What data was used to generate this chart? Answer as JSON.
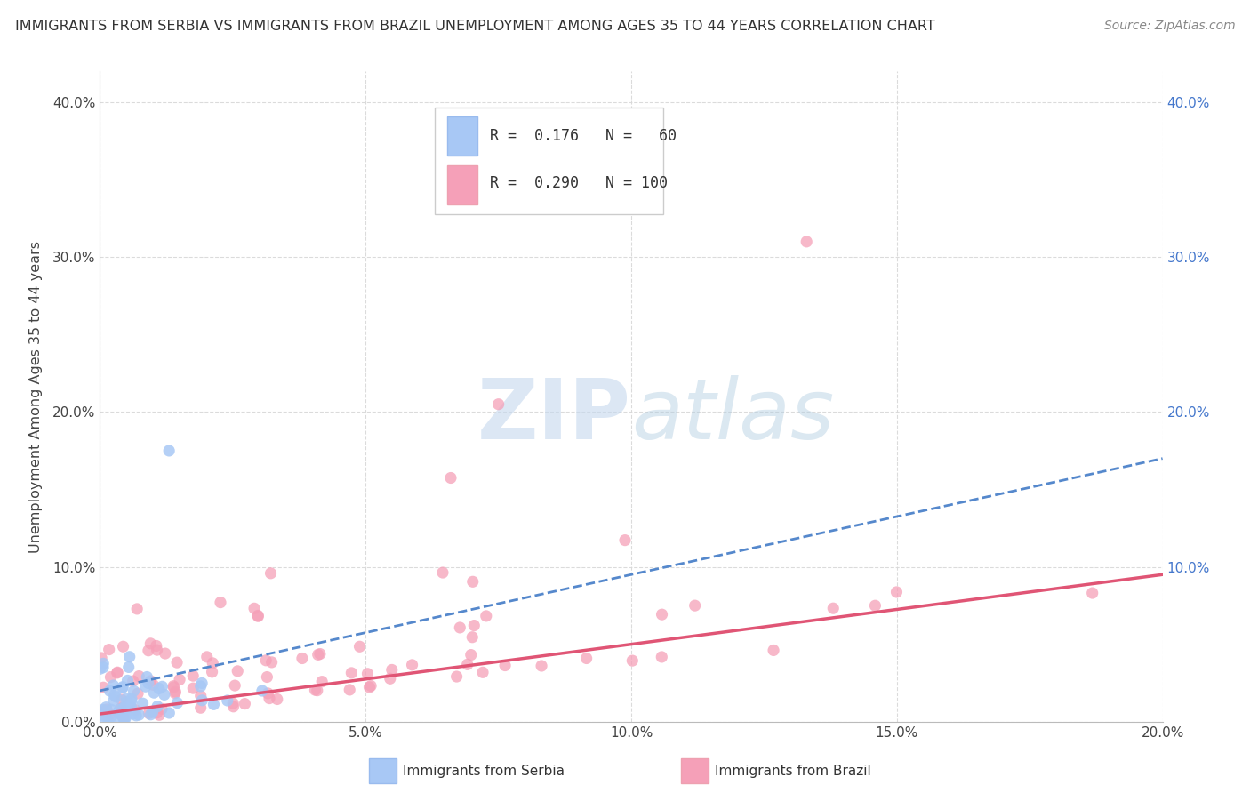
{
  "title": "IMMIGRANTS FROM SERBIA VS IMMIGRANTS FROM BRAZIL UNEMPLOYMENT AMONG AGES 35 TO 44 YEARS CORRELATION CHART",
  "source": "Source: ZipAtlas.com",
  "ylabel": "Unemployment Among Ages 35 to 44 years",
  "xlim": [
    0.0,
    0.2
  ],
  "ylim": [
    0.0,
    0.42
  ],
  "serbia_R": 0.176,
  "serbia_N": 60,
  "brazil_R": 0.29,
  "brazil_N": 100,
  "serbia_color": "#a8c8f5",
  "brazil_color": "#f5a0b8",
  "serbia_line_color": "#5588cc",
  "brazil_line_color": "#e05575",
  "watermark_color": "#c5d8ee",
  "background_color": "#ffffff",
  "grid_color": "#d8d8d8",
  "xtick_labels": [
    "0.0%",
    "5.0%",
    "10.0%",
    "15.0%",
    "20.0%"
  ],
  "xtick_vals": [
    0.0,
    0.05,
    0.1,
    0.15,
    0.2
  ],
  "ytick_labels": [
    "0.0%",
    "10.0%",
    "20.0%",
    "30.0%",
    "40.0%"
  ],
  "ytick_vals": [
    0.0,
    0.1,
    0.2,
    0.3,
    0.4
  ],
  "right_ytick_labels": [
    "10.0%",
    "20.0%",
    "30.0%",
    "40.0%"
  ],
  "right_ytick_vals": [
    0.1,
    0.2,
    0.3,
    0.4
  ],
  "legend_text_color": "#333333",
  "legend_R_color": "#4477cc",
  "legend_N_color": "#4477cc"
}
